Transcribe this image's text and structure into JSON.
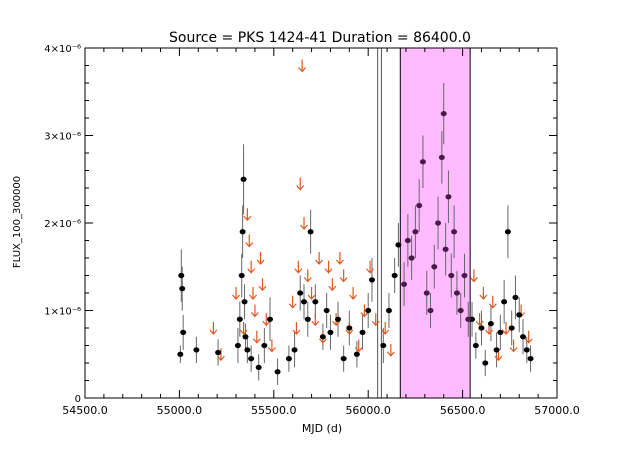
{
  "chart_data": {
    "type": "scatter",
    "title": "Source = PKS 1424-41 Duration = 86400.0",
    "xlabel": "MJD (d)",
    "ylabel": "FLUX_100_300000",
    "xlim": [
      54500,
      57000
    ],
    "ylim": [
      0,
      4e-06
    ],
    "x_ticks": [
      {
        "value": 54500,
        "label": "54500.0"
      },
      {
        "value": 55000,
        "label": "55000.0"
      },
      {
        "value": 55500,
        "label": "55500.0"
      },
      {
        "value": 56000,
        "label": "56000.0"
      },
      {
        "value": 56500,
        "label": "56500.0"
      },
      {
        "value": 57000,
        "label": "57000.0"
      }
    ],
    "y_ticks": [
      {
        "value": 0,
        "label": "0"
      },
      {
        "value": 1e-06,
        "label": "1×10⁻⁶"
      },
      {
        "value": 2e-06,
        "label": "2×10⁻⁶"
      },
      {
        "value": 3e-06,
        "label": "3×10⁻⁶"
      },
      {
        "value": 4e-06,
        "label": "4×10⁻⁶"
      }
    ],
    "highlight_band": {
      "x_start": 56170,
      "x_end": 56540,
      "color": "#ffbbff"
    },
    "vertical_lines": [
      56050,
      56070
    ],
    "colors": {
      "detections": "#000000",
      "upper_limits": "#e0561d",
      "highlighted_points": "#4a1a4a"
    },
    "detections": [
      [
        55005,
        5e-07,
        1e-07
      ],
      [
        55010,
        1.4e-06,
        3e-07
      ],
      [
        55015,
        1.25e-06,
        2.5e-07
      ],
      [
        55020,
        7.5e-07,
        2e-07
      ],
      [
        55090,
        5.5e-07,
        1.5e-07
      ],
      [
        55205,
        5.2e-07,
        1.5e-07
      ],
      [
        55310,
        6e-07,
        2e-07
      ],
      [
        55320,
        9e-07,
        2e-07
      ],
      [
        55330,
        1.4e-06,
        2.5e-07
      ],
      [
        55335,
        1.9e-06,
        3e-07
      ],
      [
        55340,
        2.5e-06,
        4e-07
      ],
      [
        55345,
        1.1e-06,
        2e-07
      ],
      [
        55350,
        7e-07,
        1.5e-07
      ],
      [
        55360,
        5.5e-07,
        1.5e-07
      ],
      [
        55380,
        4.5e-07,
        1.5e-07
      ],
      [
        55420,
        3.5e-07,
        1.5e-07
      ],
      [
        55450,
        6e-07,
        2e-07
      ],
      [
        55480,
        9e-07,
        2.5e-07
      ],
      [
        55520,
        3e-07,
        1.5e-07
      ],
      [
        55580,
        4.5e-07,
        1.5e-07
      ],
      [
        55610,
        5.5e-07,
        2e-07
      ],
      [
        55640,
        1.2e-06,
        2e-07
      ],
      [
        55660,
        1.1e-06,
        2e-07
      ],
      [
        55680,
        9e-07,
        2e-07
      ],
      [
        55695,
        1.9e-06,
        2.5e-07
      ],
      [
        55720,
        1.1e-06,
        2e-07
      ],
      [
        55760,
        7e-07,
        1.5e-07
      ],
      [
        55780,
        1e-06,
        2e-07
      ],
      [
        55800,
        7.5e-07,
        2e-07
      ],
      [
        55840,
        9e-07,
        2e-07
      ],
      [
        55870,
        4.5e-07,
        1.5e-07
      ],
      [
        55900,
        8e-07,
        2e-07
      ],
      [
        55940,
        5e-07,
        1.5e-07
      ],
      [
        55970,
        7.5e-07,
        2e-07
      ],
      [
        56000,
        1e-06,
        2e-07
      ],
      [
        56020,
        1.35e-06,
        2.5e-07
      ],
      [
        56080,
        6e-07,
        2e-07
      ],
      [
        56110,
        1e-06,
        2e-07
      ],
      [
        56140,
        1.4e-06,
        2e-07
      ],
      [
        56160,
        1.75e-06,
        2.5e-07
      ],
      [
        56550,
        9e-07,
        2e-07
      ],
      [
        56570,
        6e-07,
        1.5e-07
      ],
      [
        56600,
        8e-07,
        2e-07
      ],
      [
        56620,
        4e-07,
        1.5e-07
      ],
      [
        56650,
        8.5e-07,
        2e-07
      ],
      [
        56680,
        5.5e-07,
        2e-07
      ],
      [
        56700,
        7.5e-07,
        2e-07
      ],
      [
        56720,
        1.1e-06,
        2.5e-07
      ],
      [
        56740,
        1.9e-06,
        3e-07
      ],
      [
        56760,
        8e-07,
        2e-07
      ],
      [
        56780,
        1.15e-06,
        2.5e-07
      ],
      [
        56800,
        9.5e-07,
        2e-07
      ],
      [
        56820,
        7e-07,
        2e-07
      ],
      [
        56840,
        5.5e-07,
        1.5e-07
      ],
      [
        56860,
        4.5e-07,
        1.5e-07
      ]
    ],
    "highlighted_detections": [
      [
        56190,
        1.3e-06,
        2.5e-07
      ],
      [
        56210,
        1.8e-06,
        3e-07
      ],
      [
        56230,
        1.6e-06,
        2.5e-07
      ],
      [
        56250,
        1.9e-06,
        3e-07
      ],
      [
        56270,
        2.2e-06,
        3e-07
      ],
      [
        56290,
        2.7e-06,
        3e-07
      ],
      [
        56310,
        1.2e-06,
        2.5e-07
      ],
      [
        56330,
        1e-06,
        2e-07
      ],
      [
        56350,
        1.5e-06,
        2.5e-07
      ],
      [
        56370,
        2e-06,
        3e-07
      ],
      [
        56390,
        2.75e-06,
        3e-07
      ],
      [
        56400,
        3.25e-06,
        3.5e-07
      ],
      [
        56410,
        1.7e-06,
        3e-07
      ],
      [
        56425,
        2.3e-06,
        3e-07
      ],
      [
        56440,
        1.4e-06,
        2.5e-07
      ],
      [
        56455,
        1.9e-06,
        3e-07
      ],
      [
        56470,
        1.2e-06,
        2.5e-07
      ],
      [
        56490,
        1e-06,
        2e-07
      ],
      [
        56510,
        1.4e-06,
        2.5e-07
      ],
      [
        56530,
        9e-07,
        2e-07
      ]
    ],
    "upper_limits": [
      [
        55180,
        8e-07
      ],
      [
        55220,
        5e-07
      ],
      [
        55300,
        1.2e-06
      ],
      [
        55340,
        8e-07
      ],
      [
        55360,
        2.1e-06
      ],
      [
        55370,
        1.8e-06
      ],
      [
        55380,
        1.5e-06
      ],
      [
        55390,
        1.2e-06
      ],
      [
        55400,
        1e-06
      ],
      [
        55410,
        7e-07
      ],
      [
        55430,
        1.6e-06
      ],
      [
        55440,
        1.3e-06
      ],
      [
        55460,
        9e-07
      ],
      [
        55490,
        6e-07
      ],
      [
        55600,
        1.1e-06
      ],
      [
        55620,
        8e-07
      ],
      [
        55630,
        1.5e-06
      ],
      [
        55640,
        2.45e-06
      ],
      [
        55650,
        3.8e-06
      ],
      [
        55660,
        2e-06
      ],
      [
        55680,
        1.4e-06
      ],
      [
        55700,
        1.2e-06
      ],
      [
        55720,
        9e-07
      ],
      [
        55740,
        1.6e-06
      ],
      [
        55760,
        7e-07
      ],
      [
        55790,
        1.5e-06
      ],
      [
        55810,
        1.3e-06
      ],
      [
        55830,
        9e-07
      ],
      [
        55850,
        1.6e-06
      ],
      [
        55870,
        1.4e-06
      ],
      [
        55900,
        8e-07
      ],
      [
        55920,
        1.2e-06
      ],
      [
        55950,
        6e-07
      ],
      [
        55980,
        1e-06
      ],
      [
        56010,
        1.5e-06
      ],
      [
        56040,
        9e-07
      ],
      [
        56090,
        8e-07
      ],
      [
        56120,
        5.5e-07
      ],
      [
        56560,
        1.4e-06
      ],
      [
        56590,
        9e-07
      ],
      [
        56610,
        1.2e-06
      ],
      [
        56640,
        8e-07
      ],
      [
        56660,
        1.1e-06
      ],
      [
        56690,
        5e-07
      ],
      [
        56730,
        8e-07
      ],
      [
        56770,
        6e-07
      ],
      [
        56810,
        1e-06
      ],
      [
        56850,
        7e-07
      ]
    ]
  }
}
